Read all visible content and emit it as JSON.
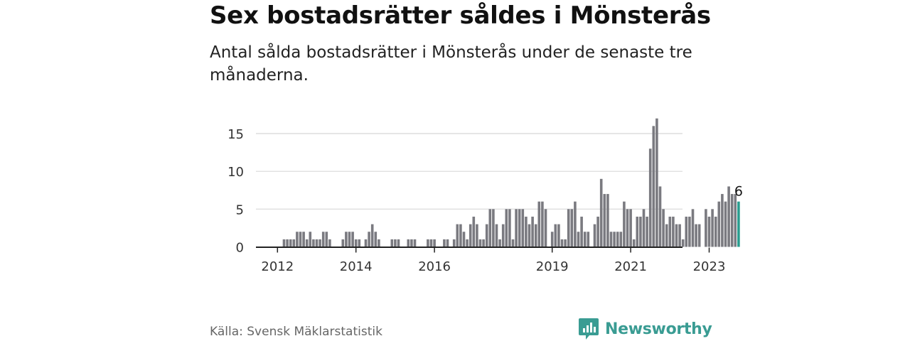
{
  "header": {
    "title": "Sex bostadsrätter såldes i Mönsterås",
    "subtitle": "Antal sålda bostadsrätter i Mönsterås under de senaste tre månaderna."
  },
  "footer": {
    "source": "Källa: Svensk Mäklarstatistik",
    "brand": "Newsworthy"
  },
  "colors": {
    "bar": "#7a7a80",
    "highlight": "#2a9d8f",
    "brand": "#3a9c93",
    "grid": "#d8d8d8"
  },
  "chart_data": {
    "type": "bar",
    "title": "Sex bostadsrätter såldes i Mönsterås",
    "xlabel": "",
    "ylabel": "",
    "ylim": [
      0,
      17
    ],
    "yticks": [
      0,
      5,
      10,
      15
    ],
    "grid": true,
    "start": "2012-01",
    "xtick_labels": [
      {
        "label": "2012",
        "index": 0
      },
      {
        "label": "2014",
        "index": 24
      },
      {
        "label": "2016",
        "index": 48
      },
      {
        "label": "2019",
        "index": 84
      },
      {
        "label": "2021",
        "index": 108
      },
      {
        "label": "2023",
        "index": 132
      }
    ],
    "values": [
      0,
      0,
      1,
      1,
      1,
      1,
      2,
      2,
      2,
      1,
      2,
      1,
      1,
      1,
      2,
      2,
      1,
      0,
      0,
      0,
      1,
      2,
      2,
      2,
      1,
      1,
      0,
      1,
      2,
      3,
      2,
      1,
      0,
      0,
      0,
      1,
      1,
      1,
      0,
      0,
      1,
      1,
      1,
      0,
      0,
      0,
      1,
      1,
      1,
      0,
      0,
      1,
      1,
      0,
      1,
      3,
      3,
      2,
      1,
      3,
      4,
      3,
      1,
      1,
      3,
      5,
      5,
      3,
      1,
      3,
      5,
      5,
      1,
      5,
      5,
      5,
      4,
      3,
      4,
      3,
      6,
      6,
      5,
      0,
      2,
      3,
      3,
      1,
      1,
      5,
      5,
      6,
      2,
      4,
      2,
      2,
      0,
      3,
      4,
      9,
      7,
      7,
      2,
      2,
      2,
      2,
      6,
      5,
      5,
      1,
      4,
      4,
      5,
      4,
      13,
      16,
      17,
      8,
      5,
      3,
      4,
      4,
      3,
      3,
      1,
      4,
      4,
      5,
      3,
      3,
      0,
      5,
      4,
      5,
      4,
      6,
      7,
      6,
      8,
      7,
      7,
      6
    ],
    "last_value_label": "6"
  }
}
